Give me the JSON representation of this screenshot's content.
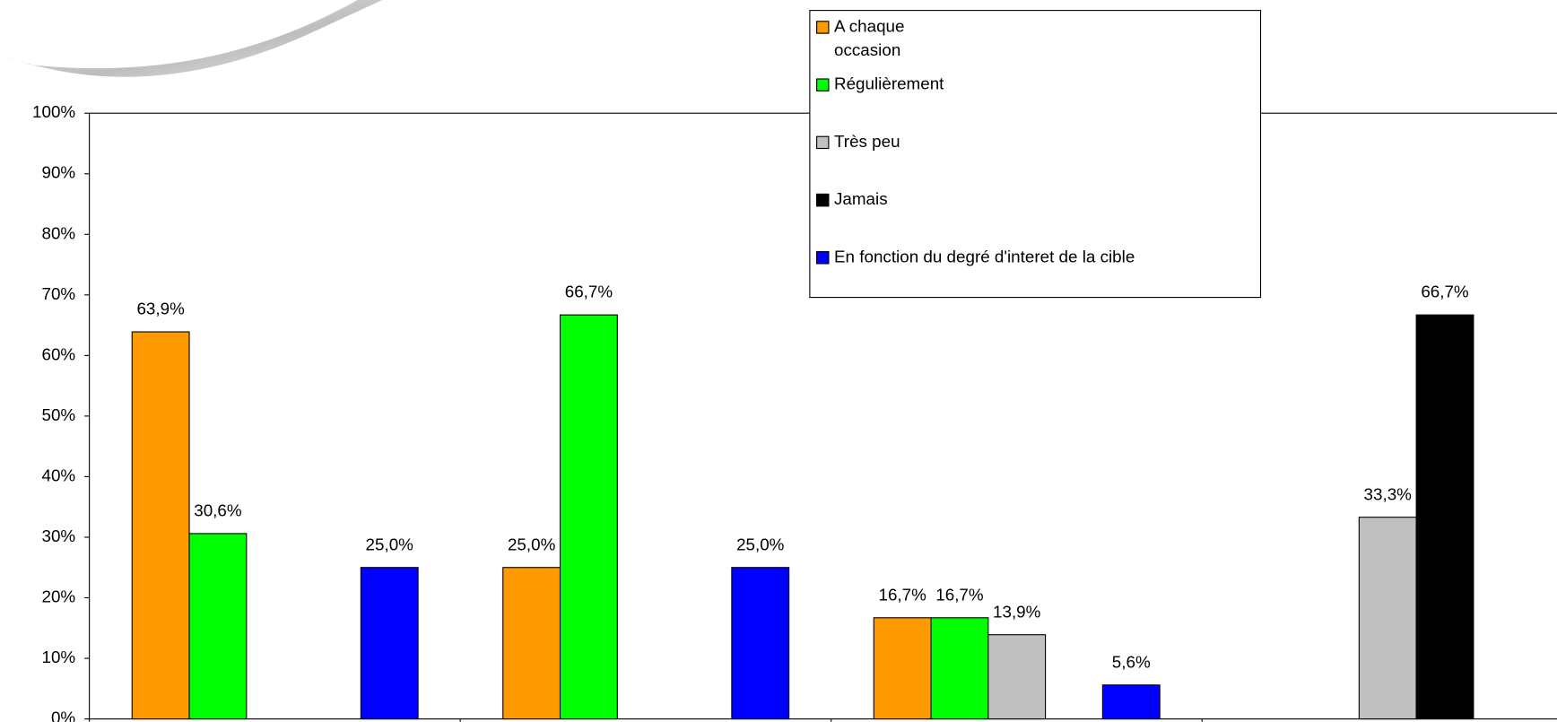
{
  "chart_data": {
    "type": "bar",
    "categories": [
      null,
      null,
      null,
      null
    ],
    "series": [
      {
        "name": "A chaque occasion",
        "color": "#FF9900",
        "values": [
          63.9,
          25.0,
          16.7,
          null
        ],
        "value_labels": [
          "63,9%",
          "25,0%",
          "16,7%",
          null
        ]
      },
      {
        "name": "Régulièrement",
        "color": "#00FF00",
        "values": [
          30.6,
          66.7,
          16.7,
          null
        ],
        "value_labels": [
          "30,6%",
          "66,7%",
          "16,7%",
          null
        ]
      },
      {
        "name": "Très peu",
        "color": "#C0C0C0",
        "values": [
          null,
          null,
          13.9,
          33.3
        ],
        "value_labels": [
          null,
          null,
          "13,9%",
          "33,3%"
        ]
      },
      {
        "name": "Jamais",
        "color": "#000000",
        "values": [
          null,
          null,
          null,
          66.7
        ],
        "value_labels": [
          null,
          null,
          null,
          "66,7%"
        ]
      },
      {
        "name": "En fonction du degré d'interet de la cible",
        "color": "#0000FF",
        "values": [
          25.0,
          25.0,
          5.6,
          null
        ],
        "value_labels": [
          "25,0%",
          "25,0%",
          "5,6%",
          null
        ]
      }
    ],
    "ylim": [
      0,
      100
    ],
    "yticks": [
      {
        "value": 0,
        "label": "0%"
      },
      {
        "value": 10,
        "label": "10%"
      },
      {
        "value": 20,
        "label": "20%"
      },
      {
        "value": 30,
        "label": "30%"
      },
      {
        "value": 40,
        "label": "40%"
      },
      {
        "value": 50,
        "label": "50%"
      },
      {
        "value": 60,
        "label": "60%"
      },
      {
        "value": 70,
        "label": "70%"
      },
      {
        "value": 80,
        "label": "80%"
      },
      {
        "value": 90,
        "label": "90%"
      },
      {
        "value": 100,
        "label": "100%"
      }
    ],
    "grid": false
  }
}
